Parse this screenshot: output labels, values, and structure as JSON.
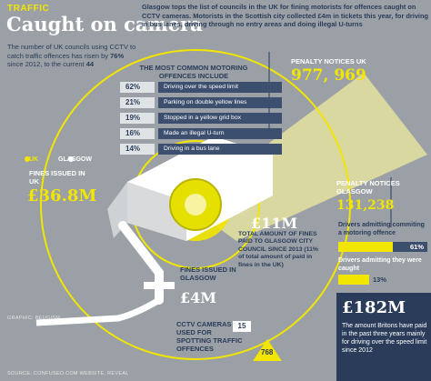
{
  "header": {
    "tag": "TRAFFIC",
    "title": "Caught on camera",
    "intro_pre": "The number of UK councils using CCTV to catch traffic offences has risen by ",
    "intro_pct": "76%",
    "intro_post": " since 2012, to the current ",
    "intro_count": "44",
    "lede": "Glasgow tops the list of councils in the UK for fining motorists for offences caught on CCTV cameras. Motorists in the Scottish city collected £4m in tickets this year, for driving in bus lanes, driving through no entry areas and doing illegal U-turns"
  },
  "offences": {
    "title": "THE MOST COMMON MOTORING OFFENCES INCLUDE",
    "items": [
      {
        "pct": "62%",
        "label": "Driving over the speed limit",
        "value": 62
      },
      {
        "pct": "21%",
        "label": "Parking on double yellow lines",
        "value": 21
      },
      {
        "pct": "19%",
        "label": "Stopped in a yellow grid box",
        "value": 19
      },
      {
        "pct": "16%",
        "label": "Made an illegal U-turn",
        "value": 16
      },
      {
        "pct": "14%",
        "label": "Driving in a bus lane",
        "value": 14
      }
    ]
  },
  "legend": {
    "uk": "UK",
    "glasgow": "GLASGOW"
  },
  "penalty_uk": {
    "label": "PENALTY NOTICES UK",
    "value": "977, 969"
  },
  "fines_uk": {
    "label": "FINES ISSUED IN UK",
    "value": "£36.8M"
  },
  "glasgow_total": {
    "value": "£11M",
    "text": "TOTAL AMOUNT OF FINES PAID TO GLASGOW CITY COUNCIL SINCE 2013 (11% of total amount of paid in fines in the UK)"
  },
  "fines_glasgow": {
    "label": "FINES ISSUED IN GLASGOW",
    "value": "£4M"
  },
  "penalty_glasgow": {
    "label": "PENALTY NOTICES GLASGOW",
    "value": "131,238"
  },
  "drivers": {
    "admitting_label": "Drivers admitting commiting a motoring offence",
    "admitting_pct": "61%",
    "admitting_value": 61,
    "caught_label": "Drivers admitting they were caught",
    "caught_pct": "13%",
    "caught_value": 13
  },
  "cctv": {
    "label": "CCTV CAMERAS USED FOR SPOTTING TRAFFIC OFFENCES",
    "glasgow": "15",
    "uk": "768"
  },
  "amount_182": {
    "value": "£182M",
    "text": "The amount Britons have paid in the past three years mainly for driving over the speed limit since 2012"
  },
  "credits": {
    "graphic": "GRAPHIC: BEUGISM",
    "source": "SOURCE: CONFUSED.COM WEBSITE, REVEAL"
  },
  "colors": {
    "yellow": "#f2e600",
    "navy": "#2a3c5a",
    "background": "#9aa0a5"
  }
}
